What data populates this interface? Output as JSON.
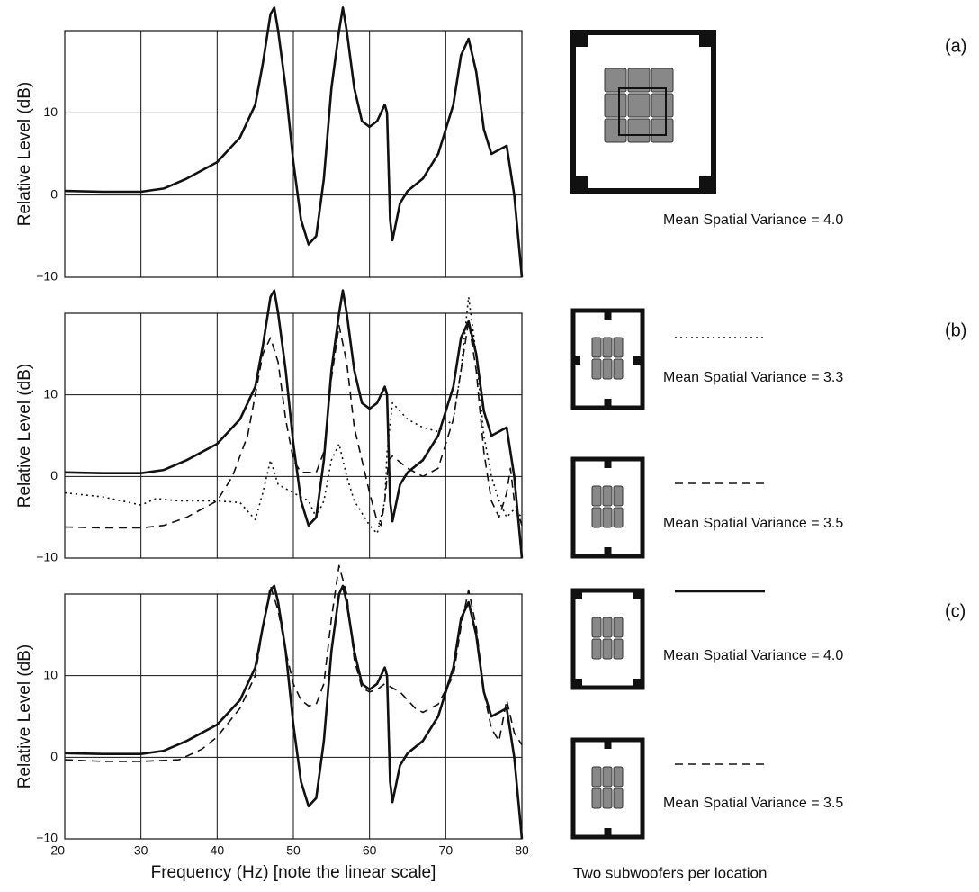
{
  "chart_data": [
    {
      "type": "line",
      "ylabel": "Relative Level (dB)",
      "xlim": [
        20,
        80
      ],
      "xticks": [
        20,
        30,
        40,
        50,
        60,
        70,
        80
      ],
      "ylim": [
        -10,
        20
      ],
      "yticks": [
        {
          "value": -10,
          "label": "−10"
        },
        0,
        10
      ],
      "grid": true,
      "series": [
        {
          "color": "#111111",
          "dash": "solid",
          "x": [
            20,
            25,
            30,
            33,
            36,
            40,
            43,
            45,
            46,
            47,
            47.5,
            48,
            49,
            50,
            51,
            52,
            53,
            54,
            55,
            56,
            56.5,
            57,
            58,
            59,
            60,
            61,
            62,
            62.3,
            62.7,
            63,
            64,
            65,
            67,
            69,
            71,
            72,
            73,
            74,
            75,
            76,
            77,
            78,
            79,
            80
          ],
          "values": [
            0.5,
            0.4,
            0.4,
            0.8,
            2,
            4,
            7,
            11,
            16,
            22,
            22.8,
            20,
            13,
            4,
            -3,
            -6,
            -5,
            2,
            13,
            20,
            22.8,
            20,
            13,
            9,
            8.3,
            9,
            11,
            10,
            -3,
            -5.5,
            -1,
            0.5,
            2,
            5,
            11,
            17,
            19,
            15,
            8,
            5,
            5.5,
            6,
            0,
            -10
          ]
        }
      ]
    },
    {
      "type": "line",
      "ylabel": "Relative Level (dB)",
      "xlim": [
        20,
        80
      ],
      "xticks": [
        20,
        30,
        40,
        50,
        60,
        70,
        80
      ],
      "ylim": [
        -10,
        20
      ],
      "yticks": [
        {
          "value": -10,
          "label": "−10"
        },
        0,
        10
      ],
      "grid": true,
      "series": [
        {
          "color": "#111111",
          "dash": "solid",
          "x": [
            20,
            25,
            30,
            33,
            36,
            40,
            43,
            45,
            46,
            47,
            47.5,
            48,
            49,
            50,
            51,
            52,
            53,
            54,
            55,
            56,
            56.5,
            57,
            58,
            59,
            60,
            61,
            62,
            62.3,
            62.7,
            63,
            64,
            65,
            67,
            69,
            71,
            72,
            73,
            74,
            75,
            76,
            77,
            78,
            79,
            80
          ],
          "values": [
            0.5,
            0.4,
            0.4,
            0.8,
            2,
            4,
            7,
            11,
            16,
            22,
            22.8,
            20,
            13,
            4,
            -3,
            -6,
            -5,
            2,
            13,
            20,
            22.8,
            20,
            13,
            9,
            8.3,
            9,
            11,
            10,
            -3,
            -5.5,
            -1,
            0.5,
            2,
            5,
            11,
            17,
            19,
            15,
            8,
            5,
            5.5,
            6,
            0,
            -10
          ]
        },
        {
          "color": "#111111",
          "dash": "dotted",
          "x": [
            20,
            25,
            30,
            32,
            35,
            40,
            43,
            45,
            46,
            47,
            48,
            50,
            52,
            53,
            54,
            55,
            56,
            57,
            58,
            60,
            61,
            62,
            62.3,
            63,
            65,
            67,
            69,
            71,
            72,
            73,
            74,
            75,
            76,
            77,
            78,
            79,
            80
          ],
          "values": [
            -2,
            -2.5,
            -3.5,
            -2.7,
            -3,
            -3,
            -3.2,
            -5.3,
            -2,
            2,
            -1,
            -2,
            -3,
            -5,
            -3,
            2,
            4,
            0,
            -3,
            -6,
            -7,
            -3,
            3,
            9,
            7,
            6,
            5.5,
            7,
            13,
            22,
            15,
            5,
            0,
            -3,
            -5,
            -4,
            -5
          ]
        },
        {
          "color": "#111111",
          "dash": "dashed",
          "x": [
            20,
            25,
            30,
            33,
            36,
            40,
            42,
            44,
            45,
            46,
            47,
            48,
            49,
            50,
            51,
            53,
            54,
            55,
            56,
            57,
            58,
            59,
            60,
            61,
            61.5,
            62,
            62.5,
            63,
            65,
            67,
            69,
            71,
            72,
            73,
            74,
            75,
            76,
            77,
            78,
            78.5,
            79,
            80
          ],
          "values": [
            -6.2,
            -6.3,
            -6.3,
            -6,
            -5,
            -3,
            0,
            5,
            10,
            15,
            17,
            14,
            7,
            2,
            0.5,
            0.5,
            3,
            12,
            18.5,
            14,
            6,
            2,
            -2,
            -5.5,
            -6,
            -3,
            2,
            2.5,
            1,
            0,
            1,
            7,
            13,
            19,
            13,
            3,
            -3,
            -5,
            -2,
            1,
            -3,
            -6
          ]
        }
      ]
    },
    {
      "type": "line",
      "ylabel": "Relative Level (dB)",
      "xlabel": "Frequency (Hz) [note the linear scale]",
      "xlim": [
        20,
        80
      ],
      "xticks": [
        20,
        30,
        40,
        50,
        60,
        70,
        80
      ],
      "ylim": [
        -10,
        20
      ],
      "yticks": [
        {
          "value": -10,
          "label": "−10"
        },
        0,
        10
      ],
      "grid": true,
      "series": [
        {
          "color": "#111111",
          "dash": "solid",
          "x": [
            20,
            25,
            30,
            33,
            36,
            40,
            43,
            45,
            46,
            47,
            47.5,
            48,
            49,
            50,
            51,
            52,
            53,
            54,
            55,
            56,
            56.5,
            57,
            58,
            59,
            60,
            61,
            62,
            62.3,
            62.7,
            63,
            64,
            65,
            67,
            69,
            71,
            72,
            73,
            74,
            75,
            76,
            77,
            78,
            79,
            80
          ],
          "values": [
            0.5,
            0.4,
            0.4,
            0.8,
            2,
            4,
            7,
            11,
            16,
            20.5,
            21,
            19,
            13,
            4,
            -3,
            -6,
            -5,
            2,
            13,
            20,
            21,
            19,
            13,
            9,
            8.3,
            9,
            11,
            10,
            -3,
            -5.5,
            -1,
            0.5,
            2,
            5,
            11,
            17,
            19,
            15,
            8,
            5,
            5.5,
            6,
            0,
            -10
          ]
        },
        {
          "color": "#111111",
          "dash": "dashed",
          "x": [
            20,
            25,
            30,
            35,
            38,
            40,
            43,
            45,
            46,
            47,
            48,
            49,
            50,
            51,
            52,
            53,
            54,
            55,
            56,
            57,
            58,
            59,
            60,
            61,
            62,
            64,
            66,
            67,
            69,
            71,
            72,
            73,
            74,
            75,
            76,
            77,
            78,
            79,
            80
          ],
          "values": [
            -0.3,
            -0.5,
            -0.5,
            -0.3,
            1,
            2.5,
            6,
            10,
            16,
            21,
            18,
            13,
            9,
            7,
            6.3,
            6.5,
            9,
            17,
            23.5,
            20,
            12,
            8.5,
            8,
            8.3,
            9,
            8,
            6,
            5.5,
            6.5,
            10,
            16,
            20.5,
            16,
            8,
            3.5,
            2,
            7,
            3,
            1.5
          ]
        }
      ]
    }
  ],
  "panel_labels": [
    "(a)",
    "(b)",
    "(c)"
  ],
  "rooms": [
    {
      "label": "Mean Spatial Variance = 4.0"
    },
    {
      "label": "Mean Spatial Variance = 3.3",
      "line": "dotted"
    },
    {
      "label": "Mean Spatial Variance = 3.5",
      "line": "dashed"
    },
    {
      "label": "Mean Spatial Variance = 4.0",
      "line": "solid"
    },
    {
      "label": "Mean Spatial Variance = 3.5",
      "line": "dashed"
    }
  ],
  "footnote": "Two subwoofers per location"
}
